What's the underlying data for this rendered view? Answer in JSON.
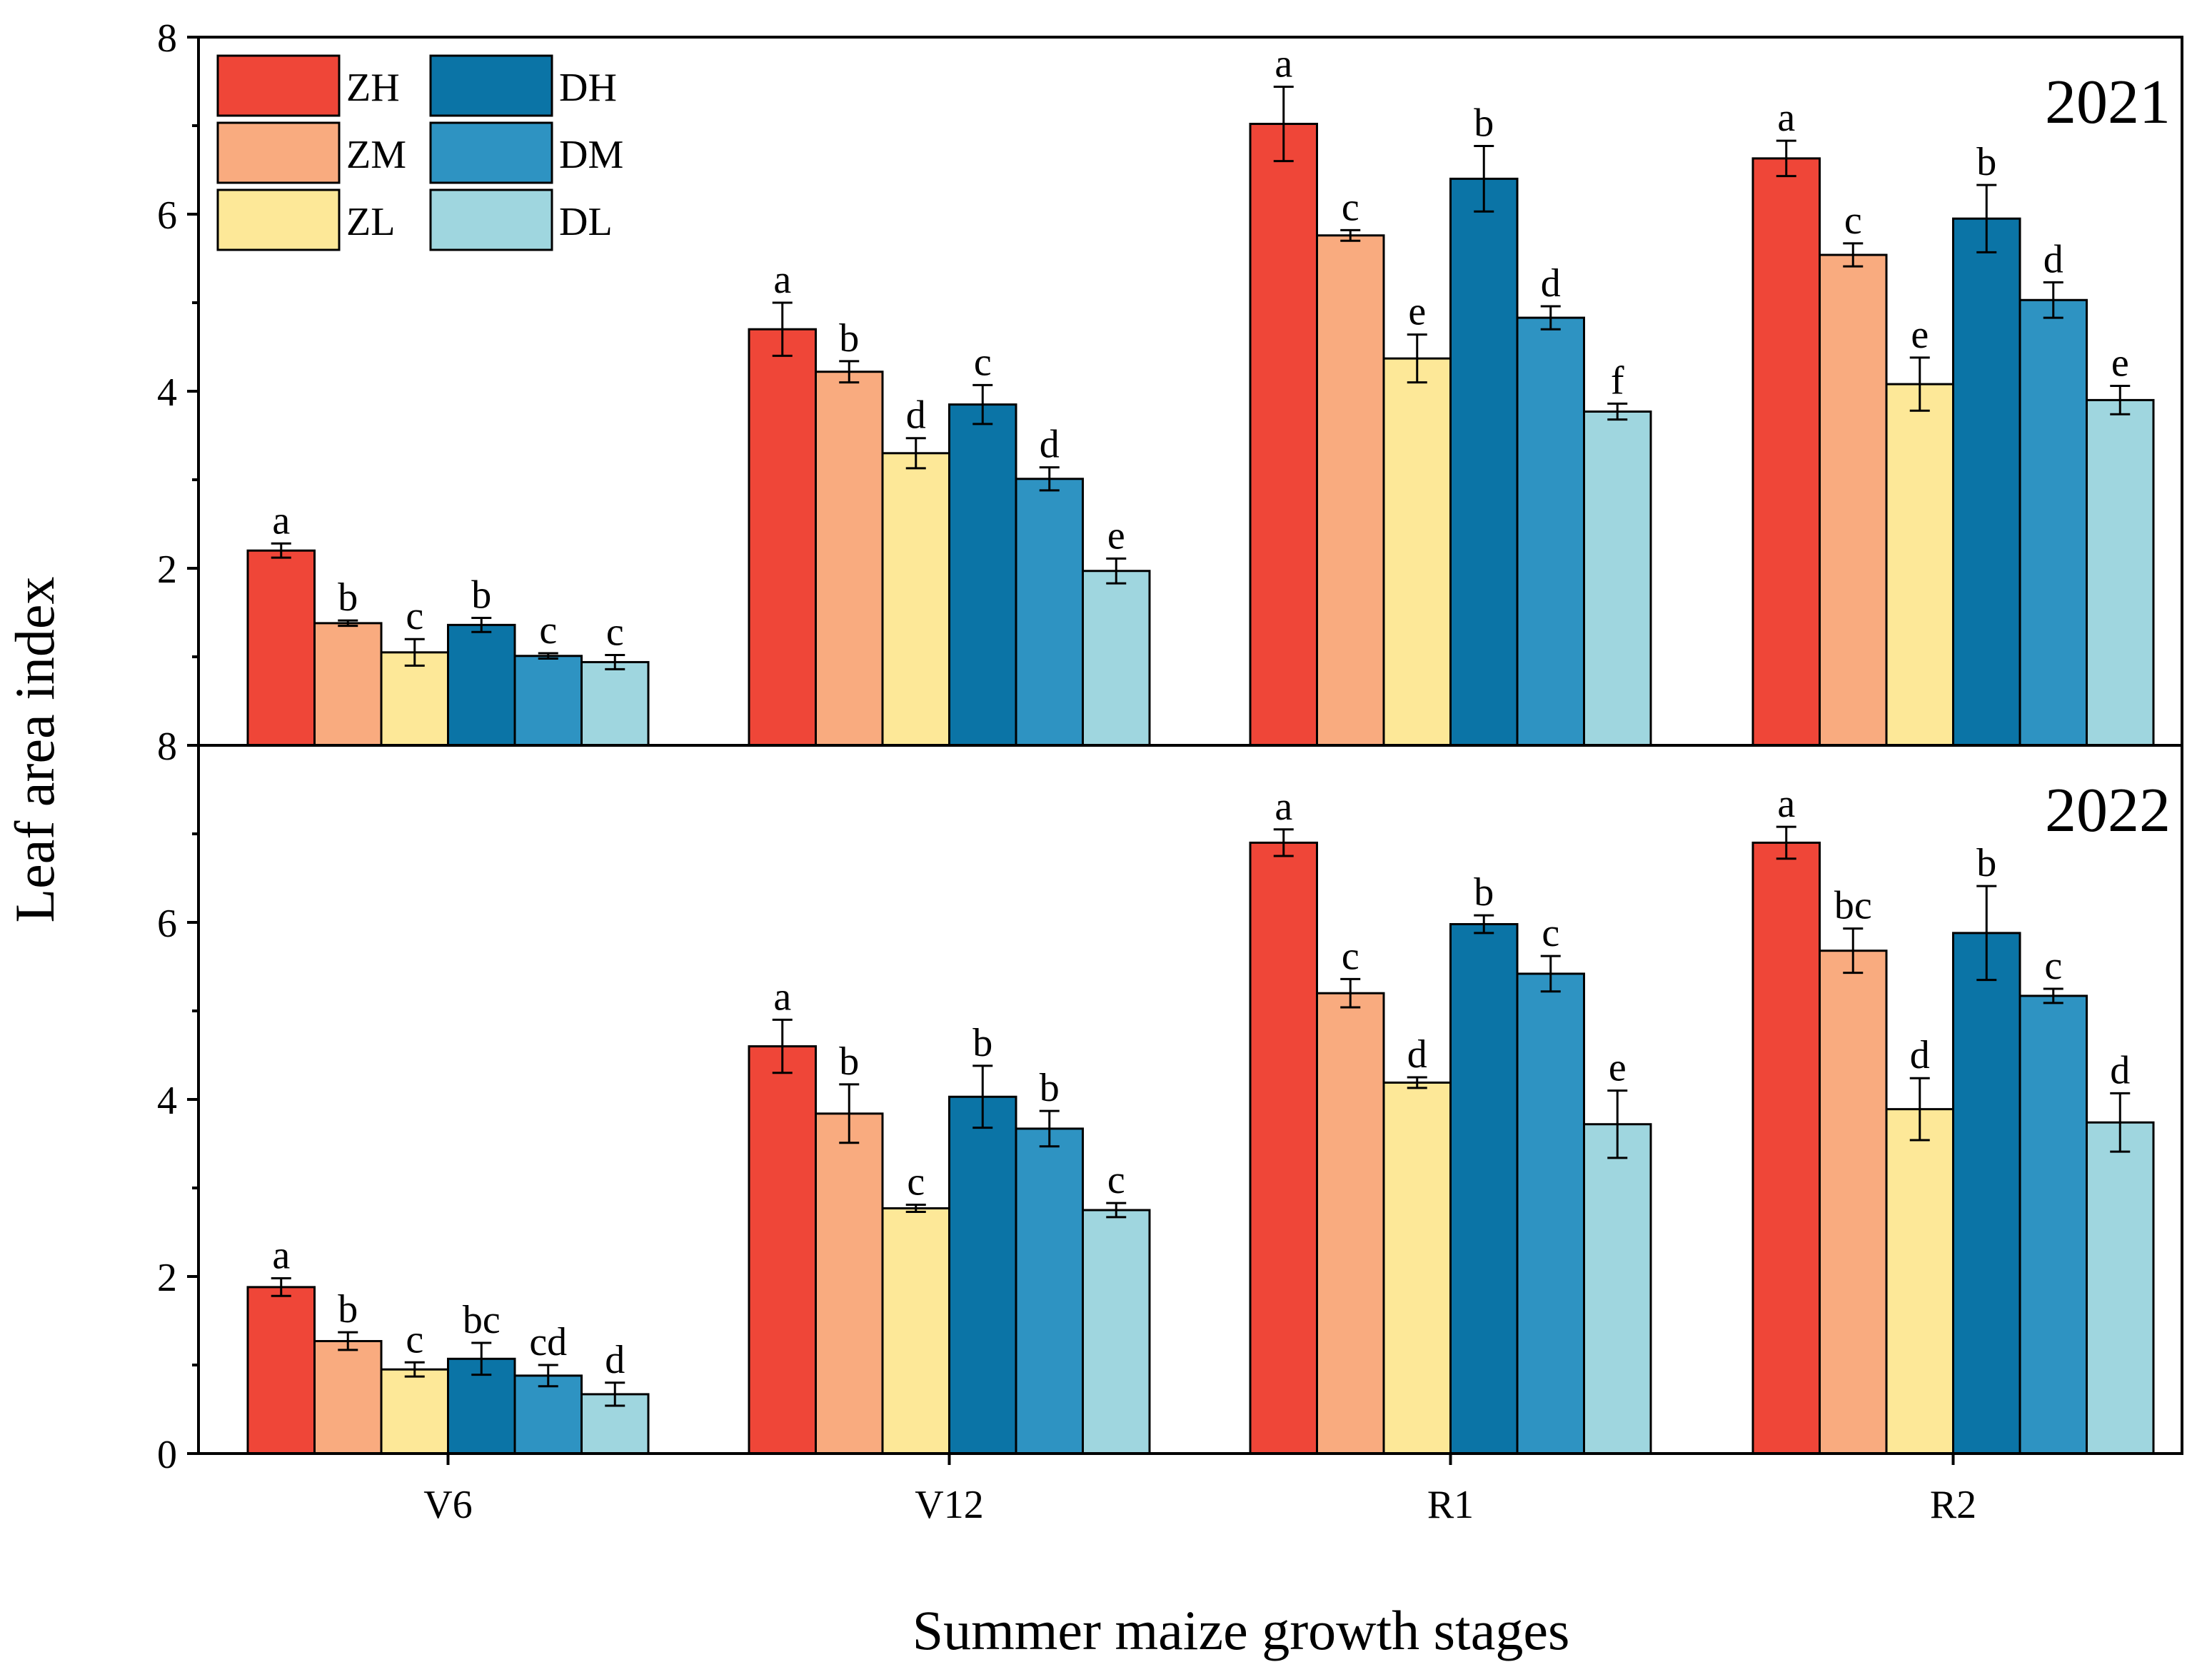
{
  "chart_data": {
    "type": "bar",
    "ylabel": "Leaf area index",
    "xlabel": "Summer maize growth stages",
    "categories": [
      "V6",
      "V12",
      "R1",
      "R2"
    ],
    "ylim": [
      0,
      8
    ],
    "yticks": [
      0,
      2,
      4,
      6,
      8
    ],
    "ytick_labels_top_panel": [
      "2",
      "4",
      "6",
      "8"
    ],
    "ytick_labels_bottom_panel": [
      "0",
      "2",
      "4",
      "6",
      "8"
    ],
    "legend": {
      "position": "top-left",
      "entries": [
        "ZH",
        "ZM",
        "ZL",
        "DH",
        "DM",
        "DL"
      ]
    },
    "series_style": [
      {
        "name": "ZH",
        "color": "#ef4638"
      },
      {
        "name": "ZM",
        "color": "#f9ab7f"
      },
      {
        "name": "ZL",
        "color": "#fde898"
      },
      {
        "name": "DH",
        "color": "#0b74a6"
      },
      {
        "name": "DM",
        "color": "#2e93c2"
      },
      {
        "name": "DL",
        "color": "#9fd6df"
      }
    ],
    "panels": [
      {
        "year": "2021",
        "series": [
          {
            "name": "ZH",
            "values": [
              2.2,
              4.7,
              7.02,
              6.63
            ],
            "errors": [
              0.08,
              0.3,
              0.42,
              0.2
            ],
            "letters": [
              "a",
              "a",
              "a",
              "a"
            ]
          },
          {
            "name": "ZM",
            "values": [
              1.38,
              4.22,
              5.76,
              5.54
            ],
            "errors": [
              0.03,
              0.12,
              0.06,
              0.13
            ],
            "letters": [
              "b",
              "b",
              "c",
              "c"
            ]
          },
          {
            "name": "ZL",
            "values": [
              1.05,
              3.3,
              4.37,
              4.08
            ],
            "errors": [
              0.15,
              0.17,
              0.27,
              0.3
            ],
            "letters": [
              "c",
              "d",
              "e",
              "e"
            ]
          },
          {
            "name": "DH",
            "values": [
              1.36,
              3.85,
              6.4,
              5.95
            ],
            "errors": [
              0.08,
              0.22,
              0.37,
              0.38
            ],
            "letters": [
              "b",
              "c",
              "b",
              "b"
            ]
          },
          {
            "name": "DM",
            "values": [
              1.01,
              3.01,
              4.83,
              5.03
            ],
            "errors": [
              0.03,
              0.13,
              0.13,
              0.2
            ],
            "letters": [
              "c",
              "d",
              "d",
              "d"
            ]
          },
          {
            "name": "DL",
            "values": [
              0.94,
              1.97,
              3.77,
              3.9
            ],
            "errors": [
              0.08,
              0.14,
              0.09,
              0.16
            ],
            "letters": [
              "c",
              "e",
              "f",
              "e"
            ]
          }
        ]
      },
      {
        "year": "2022",
        "series": [
          {
            "name": "ZH",
            "values": [
              1.88,
              4.6,
              6.9,
              6.9
            ],
            "errors": [
              0.1,
              0.3,
              0.15,
              0.18
            ],
            "letters": [
              "a",
              "a",
              "a",
              "a"
            ]
          },
          {
            "name": "ZM",
            "values": [
              1.27,
              3.84,
              5.2,
              5.68
            ],
            "errors": [
              0.1,
              0.33,
              0.16,
              0.25
            ],
            "letters": [
              "b",
              "b",
              "c",
              "bc"
            ]
          },
          {
            "name": "ZL",
            "values": [
              0.95,
              2.77,
              4.19,
              3.89
            ],
            "errors": [
              0.08,
              0.04,
              0.06,
              0.35
            ],
            "letters": [
              "c",
              "c",
              "d",
              "d"
            ]
          },
          {
            "name": "DH",
            "values": [
              1.07,
              4.03,
              5.98,
              5.88
            ],
            "errors": [
              0.18,
              0.35,
              0.1,
              0.53
            ],
            "letters": [
              "bc",
              "b",
              "b",
              "b"
            ]
          },
          {
            "name": "DM",
            "values": [
              0.88,
              3.67,
              5.42,
              5.17
            ],
            "errors": [
              0.12,
              0.2,
              0.2,
              0.08
            ],
            "letters": [
              "cd",
              "b",
              "c",
              "c"
            ]
          },
          {
            "name": "DL",
            "values": [
              0.67,
              2.75,
              3.72,
              3.74
            ],
            "errors": [
              0.13,
              0.08,
              0.38,
              0.33
            ],
            "letters": [
              "d",
              "c",
              "e",
              "d"
            ]
          }
        ]
      }
    ]
  }
}
